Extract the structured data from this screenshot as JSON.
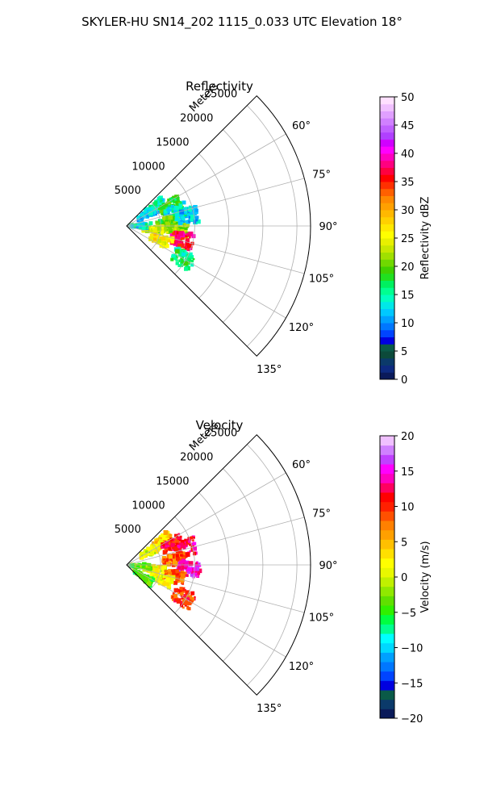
{
  "suptitle": "SKYLER-HU  SN14_202  1115_0.033 UTC Elevation 18°",
  "chart_data": [
    {
      "type": "heatmap",
      "title": "Reflectivity",
      "radial_axis_label": "Meters",
      "range_ticks": [
        "5000",
        "10000",
        "15000",
        "20000",
        "25000"
      ],
      "range_values": [
        5000,
        10000,
        15000,
        20000,
        25000
      ],
      "rmax": 27000,
      "azimuth_ticks": [
        "60°",
        "75°",
        "90°",
        "105°",
        "120°",
        "135°"
      ],
      "azimuth_values": [
        60,
        75,
        90,
        105,
        120,
        135
      ],
      "theta_range": [
        45,
        135
      ],
      "grid": true,
      "colorbar": {
        "label": "Reflectivity dBZ",
        "ticks": [
          "0",
          "5",
          "10",
          "15",
          "20",
          "25",
          "30",
          "35",
          "40",
          "45",
          "50"
        ],
        "range": [
          0,
          50
        ],
        "colors": [
          "#0a1a5a",
          "#0d2a80",
          "#0b3a6a",
          "#0c4a3a",
          "#0a5a48",
          "#0000e0",
          "#0044ff",
          "#0077ff",
          "#00a0ff",
          "#00c8ff",
          "#00e8e8",
          "#00ffc0",
          "#00ff90",
          "#00f060",
          "#20e020",
          "#40d000",
          "#70d800",
          "#a0e000",
          "#c8e800",
          "#e8f000",
          "#ffff00",
          "#ffe800",
          "#ffd000",
          "#ffb800",
          "#ffa000",
          "#ff8800",
          "#ff6000",
          "#ff3000",
          "#ff0000",
          "#ff0040",
          "#ff0080",
          "#ff00c0",
          "#ff00ff",
          "#d000ff",
          "#b040ff",
          "#c060ff",
          "#d080ff",
          "#e0a0ff",
          "#f0c0ff",
          "#ffe0ff"
        ]
      },
      "echo_regions": [
        {
          "theta": 57,
          "r": 5000,
          "value": 15
        },
        {
          "theta": 60,
          "r": 3500,
          "value": 12
        },
        {
          "theta": 66,
          "r": 7000,
          "value": 18
        },
        {
          "theta": 74,
          "r": 7600,
          "value": 14
        },
        {
          "theta": 85,
          "r": 6000,
          "value": 20
        },
        {
          "theta": 95,
          "r": 7500,
          "value": 22
        },
        {
          "theta": 104,
          "r": 8400,
          "value": 37
        },
        {
          "theta": 98,
          "r": 4000,
          "value": 24
        },
        {
          "theta": 112,
          "r": 5500,
          "value": 26
        },
        {
          "theta": 120,
          "r": 9600,
          "value": 16
        },
        {
          "theta": 90,
          "r": 2000,
          "value": 14
        },
        {
          "theta": 80,
          "r": 9000,
          "value": 12
        }
      ]
    },
    {
      "type": "heatmap",
      "title": "Velocity",
      "radial_axis_label": "Meters",
      "range_ticks": [
        "5000",
        "10000",
        "15000",
        "20000",
        "25000"
      ],
      "range_values": [
        5000,
        10000,
        15000,
        20000,
        25000
      ],
      "rmax": 27000,
      "azimuth_ticks": [
        "60°",
        "75°",
        "90°",
        "105°",
        "120°",
        "135°"
      ],
      "azimuth_values": [
        60,
        75,
        90,
        105,
        120,
        135
      ],
      "theta_range": [
        45,
        135
      ],
      "grid": true,
      "colorbar": {
        "label": "Velocity (m/s)",
        "ticks": [
          "−20",
          "−15",
          "−10",
          "−5",
          "0",
          "5",
          "10",
          "15",
          "20"
        ],
        "range": [
          -20,
          20
        ],
        "colors": [
          "#0a1a5a",
          "#0b3a6a",
          "#0a5a48",
          "#0000e0",
          "#0044ff",
          "#0077ff",
          "#00a0ff",
          "#00d8ff",
          "#00ffff",
          "#00ff90",
          "#00ff40",
          "#30f000",
          "#60e000",
          "#90e800",
          "#c0f000",
          "#e8f800",
          "#ffff00",
          "#ffe000",
          "#ffc000",
          "#ffa000",
          "#ff8000",
          "#ff5000",
          "#ff2000",
          "#ff0000",
          "#ff0060",
          "#ff00c0",
          "#ff00ff",
          "#c040ff",
          "#d080ff",
          "#f0c0ff"
        ]
      },
      "echo_regions": [
        {
          "theta": 60,
          "r": 4000,
          "value": 1
        },
        {
          "theta": 57,
          "r": 6200,
          "value": 3
        },
        {
          "theta": 66,
          "r": 7400,
          "value": 11
        },
        {
          "theta": 74,
          "r": 9200,
          "value": 12
        },
        {
          "theta": 85,
          "r": 7000,
          "value": 8
        },
        {
          "theta": 93,
          "r": 9200,
          "value": 15
        },
        {
          "theta": 104,
          "r": 7200,
          "value": 9
        },
        {
          "theta": 98,
          "r": 4000,
          "value": 2
        },
        {
          "theta": 112,
          "r": 5500,
          "value": 1
        },
        {
          "theta": 120,
          "r": 9600,
          "value": 10
        },
        {
          "theta": 95,
          "r": 2000,
          "value": -3
        },
        {
          "theta": 125,
          "r": 3000,
          "value": -4
        }
      ]
    }
  ]
}
